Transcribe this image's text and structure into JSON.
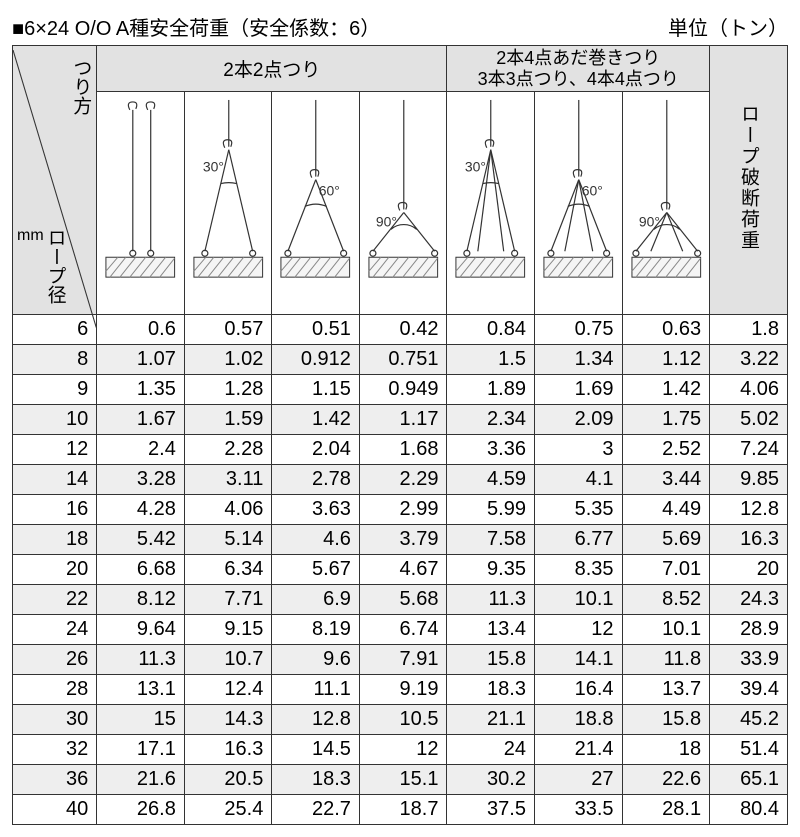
{
  "title": {
    "marker": "■",
    "main": "6×24 O/O A種安全荷重（安全係数：6）",
    "unit": "単位（トン）"
  },
  "headers": {
    "lifting_method": "つり方",
    "rope_diameter": "ロープ径",
    "rope_diameter_unit": "mm",
    "group1": "2本2点つり",
    "group2_line1": "2本4点あだ巻きつり",
    "group2_line2": "3本3点つり、4本4点つり",
    "breaking_load": "ロープ破断荷重"
  },
  "diagrams": {
    "angle30": "30°",
    "angle60": "60°",
    "angle90": "90°",
    "colors": {
      "line": "#333333",
      "hatch": "#888888",
      "fill": "#f5f5f5"
    }
  },
  "rows": [
    {
      "dia": "6",
      "v": [
        "0.6",
        "0.57",
        "0.51",
        "0.42",
        "0.84",
        "0.75",
        "0.63"
      ],
      "bl": "1.8"
    },
    {
      "dia": "8",
      "v": [
        "1.07",
        "1.02",
        "0.912",
        "0.751",
        "1.5",
        "1.34",
        "1.12"
      ],
      "bl": "3.22"
    },
    {
      "dia": "9",
      "v": [
        "1.35",
        "1.28",
        "1.15",
        "0.949",
        "1.89",
        "1.69",
        "1.42"
      ],
      "bl": "4.06"
    },
    {
      "dia": "10",
      "v": [
        "1.67",
        "1.59",
        "1.42",
        "1.17",
        "2.34",
        "2.09",
        "1.75"
      ],
      "bl": "5.02"
    },
    {
      "dia": "12",
      "v": [
        "2.4",
        "2.28",
        "2.04",
        "1.68",
        "3.36",
        "3",
        "2.52"
      ],
      "bl": "7.24"
    },
    {
      "dia": "14",
      "v": [
        "3.28",
        "3.11",
        "2.78",
        "2.29",
        "4.59",
        "4.1",
        "3.44"
      ],
      "bl": "9.85"
    },
    {
      "dia": "16",
      "v": [
        "4.28",
        "4.06",
        "3.63",
        "2.99",
        "5.99",
        "5.35",
        "4.49"
      ],
      "bl": "12.8"
    },
    {
      "dia": "18",
      "v": [
        "5.42",
        "5.14",
        "4.6",
        "3.79",
        "7.58",
        "6.77",
        "5.69"
      ],
      "bl": "16.3"
    },
    {
      "dia": "20",
      "v": [
        "6.68",
        "6.34",
        "5.67",
        "4.67",
        "9.35",
        "8.35",
        "7.01"
      ],
      "bl": "20"
    },
    {
      "dia": "22",
      "v": [
        "8.12",
        "7.71",
        "6.9",
        "5.68",
        "11.3",
        "10.1",
        "8.52"
      ],
      "bl": "24.3"
    },
    {
      "dia": "24",
      "v": [
        "9.64",
        "9.15",
        "8.19",
        "6.74",
        "13.4",
        "12",
        "10.1"
      ],
      "bl": "28.9"
    },
    {
      "dia": "26",
      "v": [
        "11.3",
        "10.7",
        "9.6",
        "7.91",
        "15.8",
        "14.1",
        "11.8"
      ],
      "bl": "33.9"
    },
    {
      "dia": "28",
      "v": [
        "13.1",
        "12.4",
        "11.1",
        "9.19",
        "18.3",
        "16.4",
        "13.7"
      ],
      "bl": "39.4"
    },
    {
      "dia": "30",
      "v": [
        "15",
        "14.3",
        "12.8",
        "10.5",
        "21.1",
        "18.8",
        "15.8"
      ],
      "bl": "45.2"
    },
    {
      "dia": "32",
      "v": [
        "17.1",
        "16.3",
        "14.5",
        "12",
        "24",
        "21.4",
        "18"
      ],
      "bl": "51.4"
    },
    {
      "dia": "36",
      "v": [
        "21.6",
        "20.5",
        "18.3",
        "15.1",
        "30.2",
        "27",
        "22.6"
      ],
      "bl": "65.1"
    },
    {
      "dia": "40",
      "v": [
        "26.8",
        "25.4",
        "22.7",
        "18.7",
        "37.5",
        "33.5",
        "28.1"
      ],
      "bl": "80.4"
    }
  ],
  "shade_pattern": [
    false,
    true,
    false,
    true,
    false,
    true,
    false,
    true,
    false,
    true,
    false,
    true,
    false,
    true,
    false,
    true,
    false
  ]
}
